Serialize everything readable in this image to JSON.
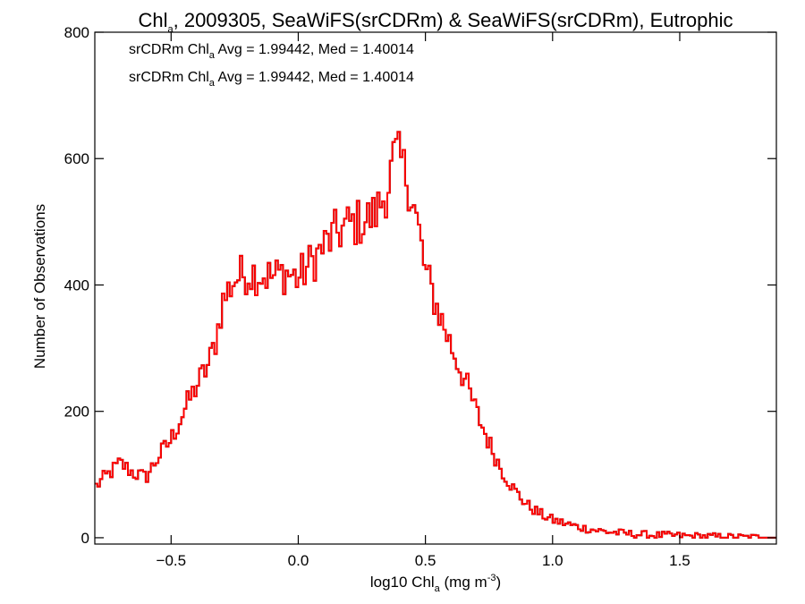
{
  "chart_data": {
    "type": "bar",
    "title": {
      "part1": "Chl",
      "sub": "a",
      "part2": ", 2009305, SeaWiFS(srCDRm) & SeaWiFS(srCDRm), Eutrophic"
    },
    "xlabel": {
      "part1": "log10 Chl",
      "sub": "a",
      "part2": " (mg m",
      "sup": "-3",
      "part3": ")"
    },
    "ylabel": "Number of Observations",
    "xlim": [
      -0.8,
      1.88
    ],
    "ylim": [
      -10,
      800
    ],
    "xticks": [
      {
        "v": -0.5,
        "label": "−0.5"
      },
      {
        "v": 0.0,
        "label": "0.0"
      },
      {
        "v": 0.5,
        "label": "0.5"
      },
      {
        "v": 1.0,
        "label": "1.0"
      },
      {
        "v": 1.5,
        "label": "1.5"
      }
    ],
    "yticks": [
      {
        "v": 0,
        "label": "0"
      },
      {
        "v": 200,
        "label": "200"
      },
      {
        "v": 400,
        "label": "400"
      },
      {
        "v": 600,
        "label": "600"
      },
      {
        "v": 800,
        "label": "800"
      }
    ],
    "annotations": [
      {
        "part1": "srCDRm Chl",
        "sub": "a",
        "part2": " Avg = 1.99442, Med = 1.40014",
        "color": "#000000"
      },
      {
        "part1": "srCDRm Chl",
        "sub": "a",
        "part2": " Avg = 1.99442, Med = 1.40014",
        "color": "#ff0000"
      }
    ],
    "series": [
      {
        "color": "#000000",
        "curve": [
          [
            -0.8,
            80
          ],
          [
            -0.7,
            118
          ],
          [
            -0.65,
            103
          ],
          [
            -0.6,
            95
          ],
          [
            -0.55,
            128
          ],
          [
            -0.5,
            155
          ],
          [
            -0.45,
            200
          ],
          [
            -0.4,
            240
          ],
          [
            -0.35,
            275
          ],
          [
            -0.32,
            320
          ],
          [
            -0.3,
            370
          ],
          [
            -0.27,
            395
          ],
          [
            -0.25,
            410
          ],
          [
            -0.2,
            420
          ],
          [
            -0.15,
            418
          ],
          [
            -0.1,
            412
          ],
          [
            -0.05,
            420
          ],
          [
            0.0,
            410
          ],
          [
            0.05,
            435
          ],
          [
            0.1,
            460
          ],
          [
            0.15,
            482
          ],
          [
            0.2,
            495
          ],
          [
            0.25,
            500
          ],
          [
            0.3,
            510
          ],
          [
            0.35,
            550
          ],
          [
            0.38,
            610
          ],
          [
            0.4,
            600
          ],
          [
            0.42,
            580
          ],
          [
            0.45,
            535
          ],
          [
            0.48,
            470
          ],
          [
            0.5,
            420
          ],
          [
            0.55,
            360
          ],
          [
            0.6,
            305
          ],
          [
            0.65,
            255
          ],
          [
            0.7,
            200
          ],
          [
            0.75,
            150
          ],
          [
            0.8,
            108
          ],
          [
            0.85,
            75
          ],
          [
            0.9,
            52
          ],
          [
            0.95,
            38
          ],
          [
            1.0,
            28
          ],
          [
            1.1,
            17
          ],
          [
            1.2,
            10
          ],
          [
            1.3,
            6
          ],
          [
            1.4,
            4
          ],
          [
            1.5,
            3
          ],
          [
            1.6,
            2
          ],
          [
            1.7,
            1
          ],
          [
            1.88,
            0
          ]
        ]
      },
      {
        "color": "#ff0000",
        "curve": [
          [
            -0.8,
            80
          ],
          [
            -0.7,
            118
          ],
          [
            -0.65,
            103
          ],
          [
            -0.6,
            95
          ],
          [
            -0.55,
            128
          ],
          [
            -0.5,
            155
          ],
          [
            -0.45,
            200
          ],
          [
            -0.4,
            240
          ],
          [
            -0.35,
            275
          ],
          [
            -0.32,
            320
          ],
          [
            -0.3,
            370
          ],
          [
            -0.27,
            395
          ],
          [
            -0.25,
            410
          ],
          [
            -0.2,
            420
          ],
          [
            -0.15,
            418
          ],
          [
            -0.1,
            412
          ],
          [
            -0.05,
            420
          ],
          [
            0.0,
            410
          ],
          [
            0.05,
            435
          ],
          [
            0.1,
            460
          ],
          [
            0.15,
            482
          ],
          [
            0.2,
            495
          ],
          [
            0.25,
            500
          ],
          [
            0.3,
            510
          ],
          [
            0.35,
            550
          ],
          [
            0.38,
            610
          ],
          [
            0.4,
            600
          ],
          [
            0.42,
            580
          ],
          [
            0.45,
            535
          ],
          [
            0.48,
            470
          ],
          [
            0.5,
            420
          ],
          [
            0.55,
            360
          ],
          [
            0.6,
            305
          ],
          [
            0.65,
            255
          ],
          [
            0.7,
            200
          ],
          [
            0.75,
            150
          ],
          [
            0.8,
            108
          ],
          [
            0.85,
            75
          ],
          [
            0.9,
            52
          ],
          [
            0.95,
            38
          ],
          [
            1.0,
            28
          ],
          [
            1.1,
            17
          ],
          [
            1.2,
            10
          ],
          [
            1.3,
            6
          ],
          [
            1.4,
            4
          ],
          [
            1.5,
            3
          ],
          [
            1.6,
            2
          ],
          [
            1.7,
            1
          ],
          [
            1.88,
            0
          ]
        ]
      }
    ]
  }
}
